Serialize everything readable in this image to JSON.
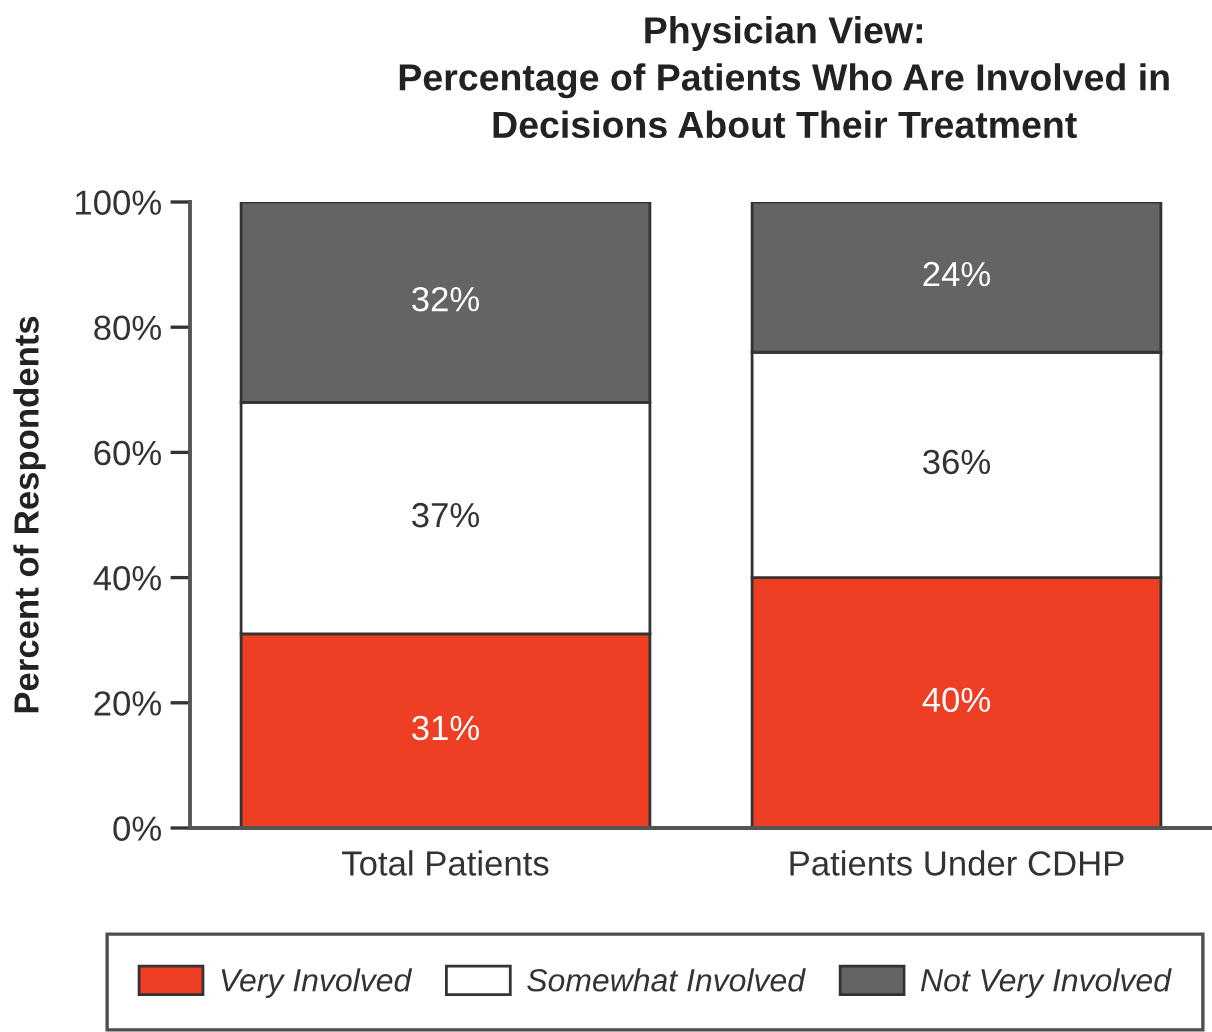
{
  "chart_data": {
    "type": "bar",
    "stacked": true,
    "title": "Physician View:\nPercentage of Patients Who Are Involved in\nDecisions About Their Treatment",
    "ylabel": "Percent of Respondents",
    "categories": [
      "Total Patients",
      "Patients Under CDHP"
    ],
    "series": [
      {
        "name": "Very Involved",
        "color": "#ee3e24",
        "values": [
          31,
          40
        ],
        "value_labels": [
          "31%",
          "40%"
        ]
      },
      {
        "name": "Somewhat Involved",
        "color": "#ffffff",
        "values": [
          37,
          36
        ],
        "value_labels": [
          "37%",
          "36%"
        ]
      },
      {
        "name": "Not Very Involved",
        "color": "#646466",
        "values": [
          32,
          24
        ],
        "value_labels": [
          "32%",
          "24%"
        ]
      }
    ],
    "ylim": [
      0,
      100
    ],
    "yticks": [
      {
        "value": 0,
        "label": "0%"
      },
      {
        "value": 20,
        "label": "20%"
      },
      {
        "value": 40,
        "label": "40%"
      },
      {
        "value": 60,
        "label": "60%"
      },
      {
        "value": 80,
        "label": "80%"
      },
      {
        "value": 100,
        "label": "100%"
      }
    ],
    "grid": false,
    "legend": "bottom"
  }
}
